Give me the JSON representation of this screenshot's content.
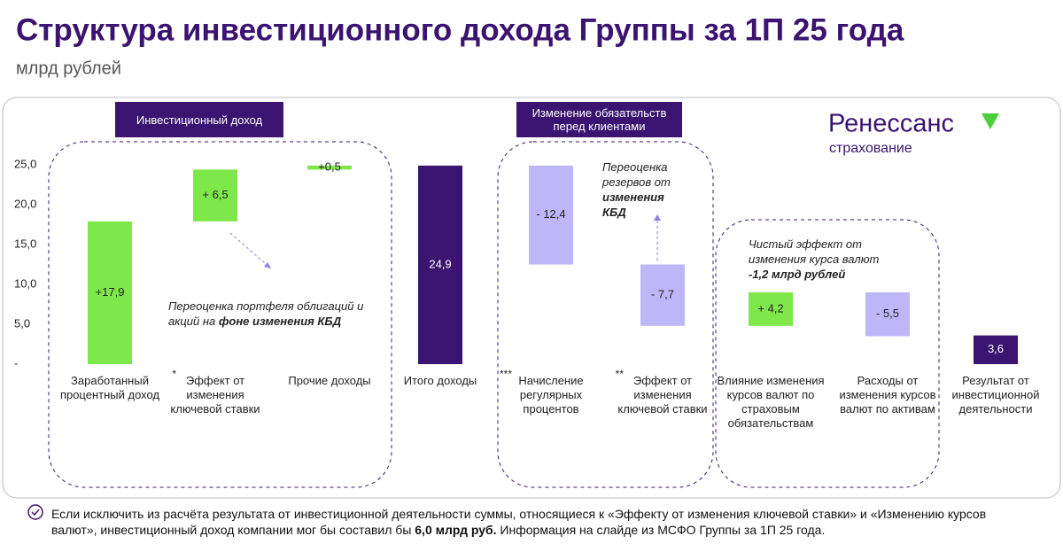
{
  "chart_data": {
    "type": "waterfall",
    "title": "Структура инвестиционного дохода Группы за 1П 25 года",
    "subtitle": "млрд рублей",
    "categories": [
      "Заработанный процентный доход",
      "Эффект от изменения ключевой ставки",
      "Прочие доходы",
      "Итого доходы",
      "Начисление регулярных процентов",
      "Эффект от изменения ключевой ставки",
      "Влияние изменения курсов валют по страховым обязательствам",
      "Расходы от изменения курсов валют по активам",
      "Результат от инвестиционной деятельности"
    ],
    "category_marks": [
      null,
      "*",
      null,
      null,
      "***",
      "**",
      null,
      null,
      null
    ],
    "values": [
      17.9,
      6.5,
      0.5,
      24.9,
      -12.4,
      -7.7,
      4.2,
      -5.5,
      3.6
    ],
    "value_labels": [
      "+17,9",
      "+ 6,5",
      "+0,5",
      "24,9",
      "- 12,4",
      "- 7,7",
      "+ 4,2",
      "- 5,5",
      "3,6"
    ],
    "measure": [
      "relative",
      "relative",
      "relative",
      "total",
      "relative",
      "relative",
      "relative",
      "relative",
      "total"
    ],
    "colors": [
      "#7ee84a",
      "#7ee84a",
      "#7ee84a",
      "#3b1370",
      "#bdb6f7",
      "#bdb6f7",
      "#7ee84a",
      "#bdb6f7",
      "#3b1370"
    ],
    "ylim": [
      0,
      25
    ],
    "yticks": [
      {
        "value": 0,
        "label": "-"
      },
      {
        "value": 5,
        "label": "5,0"
      },
      {
        "value": 10,
        "label": "10,0"
      },
      {
        "value": 15,
        "label": "15,0"
      },
      {
        "value": 20,
        "label": "20,0"
      },
      {
        "value": 25,
        "label": "25,0"
      }
    ],
    "groups": [
      "Инвестиционный доход",
      "Изменение обязательств перед клиентами"
    ],
    "annotations": [
      {
        "parts": [
          "Переоценка портфеля облигаций и акций на ",
          "фоне изменения КБД"
        ]
      },
      {
        "parts": [
          "Переоценка резервов от ",
          "изменения КБД"
        ]
      },
      {
        "parts": [
          "Чистый эффект от изменения курса валют ",
          "-1,2 млрд рублей"
        ]
      }
    ]
  },
  "logo": {
    "name": "Ренессанс",
    "sub": "страхование"
  },
  "footnote": {
    "parts": [
      "Если исключить из расчёта результата от инвестиционной деятельности суммы, относящиеся к «Эффекту от изменения ключевой ставки» и «Изменению курсов валют», инвестиционный доход компании мог бы составил бы ",
      "6,0 млрд руб.",
      " Информация на слайде из МСФО Группы за 1П 25 года."
    ]
  }
}
